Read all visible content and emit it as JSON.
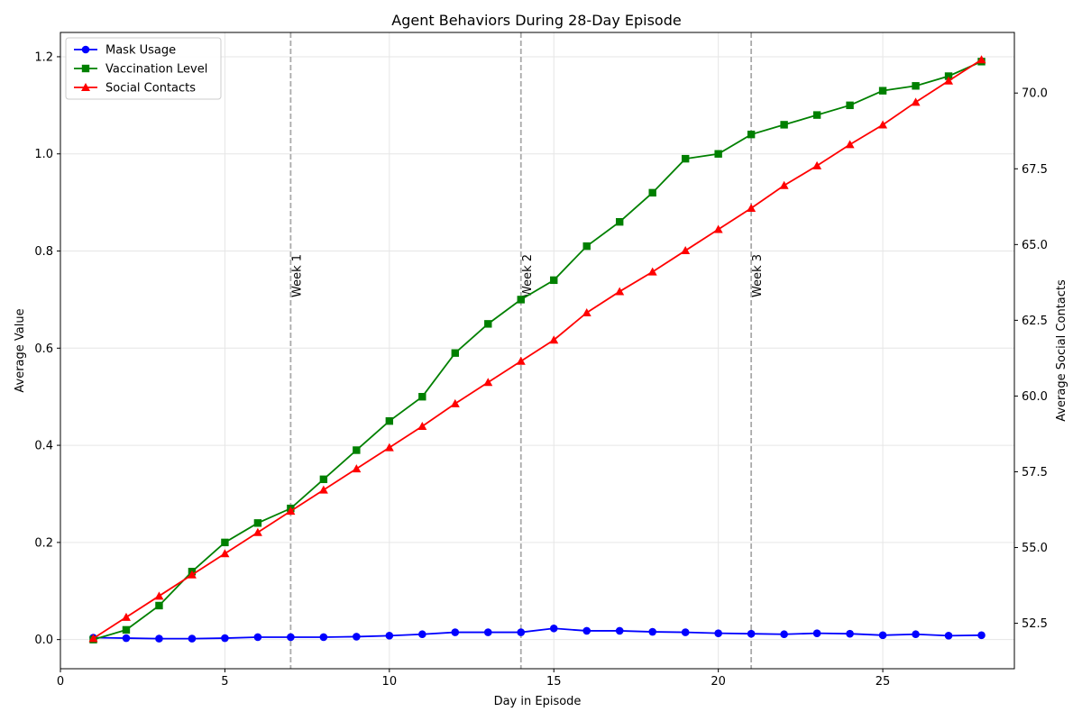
{
  "chart_data": {
    "type": "line",
    "title": "Agent Behaviors During 28-Day Episode",
    "xlabel": "Day in Episode",
    "ylabel": "Average Value",
    "y2label": "Average Social Contacts",
    "xlim": [
      0,
      29
    ],
    "ylim": [
      -0.06,
      1.25
    ],
    "y2lim": [
      51.0,
      72.0
    ],
    "xticks": [
      0,
      5,
      10,
      15,
      20,
      25
    ],
    "yticks": [
      0.0,
      0.2,
      0.4,
      0.6,
      0.8,
      1.0,
      1.2
    ],
    "y2ticks": [
      52.5,
      55.0,
      57.5,
      60.0,
      62.5,
      65.0,
      67.5,
      70.0
    ],
    "grid": true,
    "legend_position": "top-left",
    "x": [
      1,
      2,
      3,
      4,
      5,
      6,
      7,
      8,
      9,
      10,
      11,
      12,
      13,
      14,
      15,
      16,
      17,
      18,
      19,
      20,
      21,
      22,
      23,
      24,
      25,
      26,
      27,
      28
    ],
    "series": [
      {
        "name": "Mask Usage",
        "axis": "left",
        "color": "#0000ff",
        "marker": "circle",
        "values": [
          0.004,
          0.003,
          0.002,
          0.002,
          0.003,
          0.005,
          0.005,
          0.005,
          0.006,
          0.008,
          0.011,
          0.015,
          0.015,
          0.015,
          0.023,
          0.018,
          0.018,
          0.016,
          0.015,
          0.013,
          0.012,
          0.011,
          0.013,
          0.012,
          0.009,
          0.011,
          0.008,
          0.009
        ]
      },
      {
        "name": "Vaccination Level",
        "axis": "left",
        "color": "#008000",
        "marker": "square",
        "values": [
          0.0,
          0.02,
          0.07,
          0.14,
          0.2,
          0.24,
          0.27,
          0.33,
          0.39,
          0.45,
          0.5,
          0.59,
          0.65,
          0.7,
          0.74,
          0.81,
          0.86,
          0.92,
          0.99,
          1.0,
          1.04,
          1.06,
          1.08,
          1.1,
          1.13,
          1.14,
          1.16,
          1.19
        ]
      },
      {
        "name": "Social Contacts",
        "axis": "right",
        "color": "#ff0000",
        "marker": "triangle",
        "values": [
          52.0,
          52.7,
          53.4,
          54.1,
          54.8,
          55.5,
          56.2,
          56.9,
          57.6,
          58.3,
          59.0,
          59.75,
          60.45,
          61.15,
          61.85,
          62.75,
          63.45,
          64.1,
          64.8,
          65.5,
          66.2,
          66.95,
          67.6,
          68.3,
          68.95,
          69.7,
          70.4,
          71.1
        ]
      }
    ],
    "vlines": [
      {
        "x": 7,
        "label": "Week 1"
      },
      {
        "x": 14,
        "label": "Week 2"
      },
      {
        "x": 21,
        "label": "Week 3"
      }
    ]
  }
}
